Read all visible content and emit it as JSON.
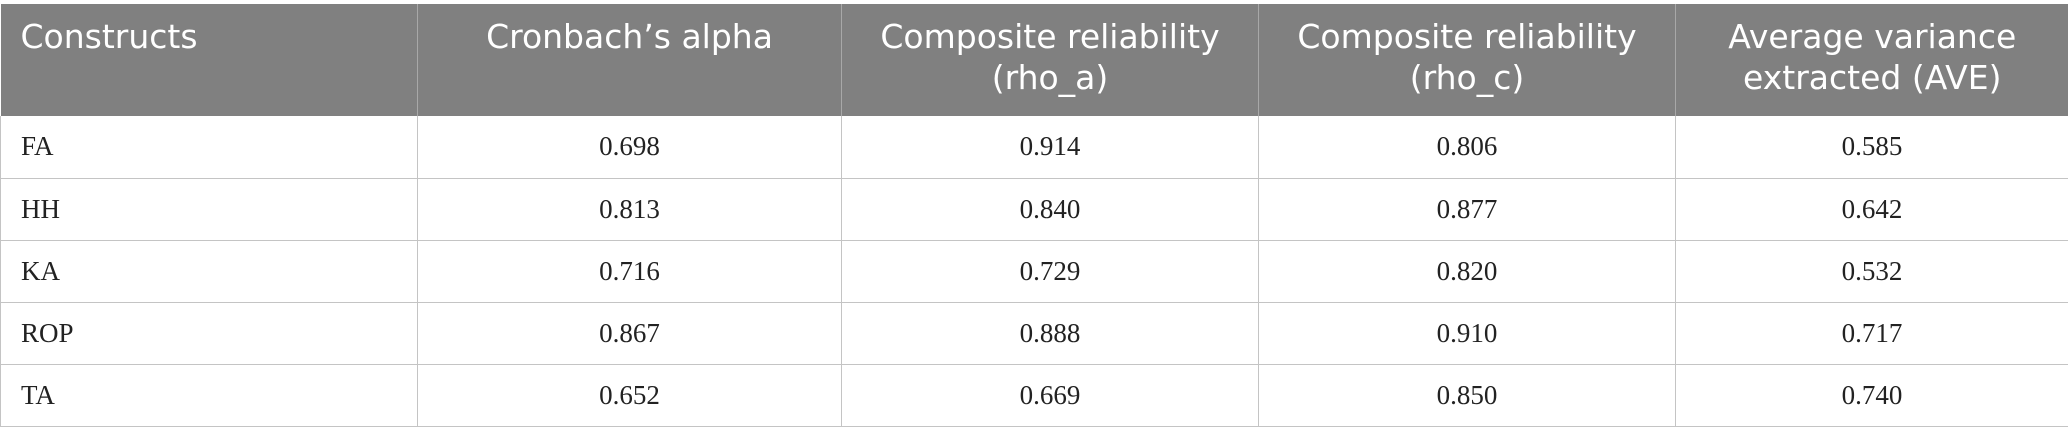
{
  "table": {
    "header": [
      "Constructs",
      "Cronbach’s alpha",
      "Composite reliability (rho_a)",
      "Composite reliability (rho_c)",
      "Average variance extracted (AVE)"
    ],
    "rows": [
      [
        "FA",
        "0.698",
        "0.914",
        "0.806",
        "0.585"
      ],
      [
        "HH",
        "0.813",
        "0.840",
        "0.877",
        "0.642"
      ],
      [
        "KA",
        "0.716",
        "0.729",
        "0.820",
        "0.532"
      ],
      [
        "ROP",
        "0.867",
        "0.888",
        "0.910",
        "0.717"
      ],
      [
        "TA",
        "0.652",
        "0.669",
        "0.850",
        "0.740"
      ]
    ]
  }
}
